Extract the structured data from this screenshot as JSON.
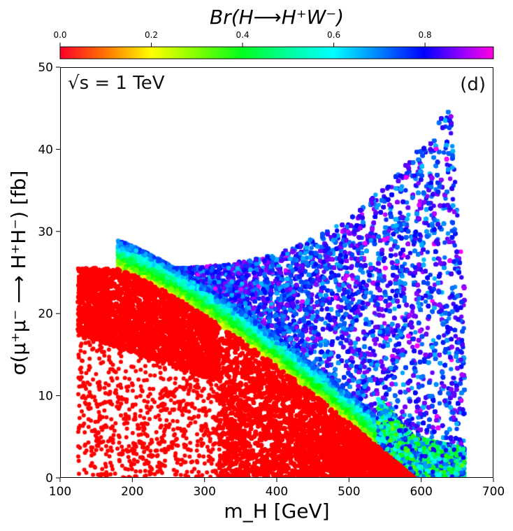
{
  "chart_data": {
    "type": "scatter",
    "title": "Br(H⟶H⁺W⁻)",
    "xlabel": "m_H [GeV]",
    "ylabel": "σ(μ⁺μ⁻ ⟶ H⁺H⁻) [fb]",
    "xlim": [
      100,
      700
    ],
    "ylim": [
      0,
      50
    ],
    "x_ticks": [
      "100",
      "200",
      "300",
      "400",
      "500",
      "600",
      "700"
    ],
    "y_ticks": [
      "0",
      "10",
      "20",
      "30",
      "40",
      "50"
    ],
    "colorbar": {
      "label": "Br(H⟶H⁺W⁻)",
      "range": [
        0.0,
        0.95
      ],
      "ticks": [
        "0.0",
        "0.2",
        "0.4",
        "0.6",
        "0.8"
      ],
      "colormap": "gist_rainbow_r"
    },
    "annotations": {
      "energy": "√s = 1 TeV",
      "panel": "(d)"
    },
    "regions": [
      {
        "name": "dense red band (Br≈0)",
        "x_range": [
          125,
          590
        ],
        "y_range": [
          0,
          25.5
        ]
      },
      {
        "name": "blue region (Br≈0.75)",
        "x_range": [
          300,
          660
        ],
        "y_range": [
          0,
          46
        ]
      }
    ],
    "colors": {
      "low": "#ff0028",
      "mid": "#00ff80",
      "high": "#0055ff"
    }
  }
}
